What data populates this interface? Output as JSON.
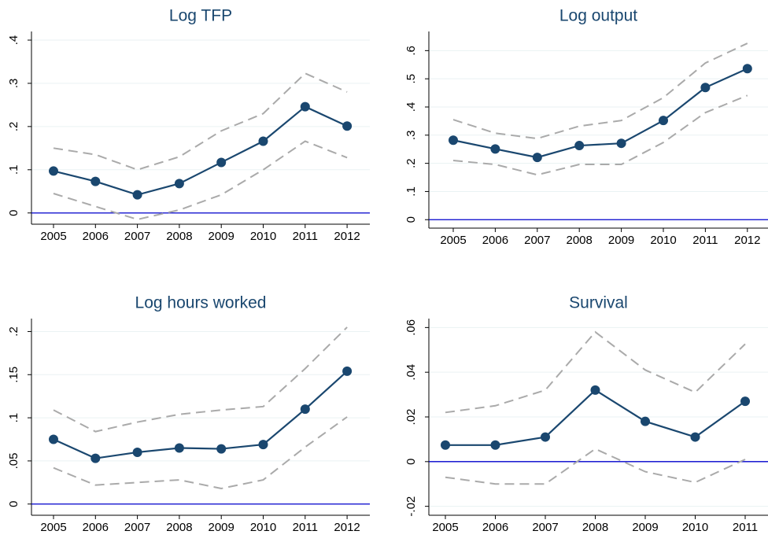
{
  "chart_data": [
    {
      "type": "line",
      "title": "Log TFP",
      "categories": [
        "2005",
        "2006",
        "2007",
        "2008",
        "2009",
        "2010",
        "2011",
        "2012"
      ],
      "series": [
        {
          "color": "#1a476f",
          "style": "solid",
          "markers": true,
          "values": [
            0.097,
            0.073,
            0.042,
            0.068,
            0.117,
            0.166,
            0.246,
            0.201
          ]
        },
        {
          "color": "#aaaaaa",
          "style": "dashed",
          "markers": false,
          "values": [
            0.15,
            0.135,
            0.1,
            0.13,
            0.19,
            0.23,
            0.323,
            0.28
          ]
        },
        {
          "color": "#aaaaaa",
          "style": "dashed",
          "markers": false,
          "values": [
            0.045,
            0.015,
            -0.015,
            0.007,
            0.042,
            0.1,
            0.166,
            0.128
          ]
        }
      ],
      "ylim": [
        -0.026,
        0.42
      ],
      "yticks": [
        0,
        {
          "value": 0.1,
          "label": ".1"
        },
        {
          "value": 0.2,
          "label": ".2"
        },
        {
          "value": 0.3,
          "label": ".3"
        },
        {
          "value": 0.4,
          "label": ".4"
        }
      ],
      "yline": 0,
      "yline_color": "#0000cc",
      "grid": true
    },
    {
      "type": "line",
      "title": "Log output",
      "categories": [
        "2005",
        "2006",
        "2007",
        "2008",
        "2009",
        "2010",
        "2011",
        "2012"
      ],
      "series": [
        {
          "color": "#1a476f",
          "style": "solid",
          "markers": true,
          "values": [
            0.282,
            0.251,
            0.221,
            0.263,
            0.271,
            0.352,
            0.469,
            0.536
          ]
        },
        {
          "color": "#aaaaaa",
          "style": "dashed",
          "markers": false,
          "values": [
            0.355,
            0.307,
            0.288,
            0.332,
            0.352,
            0.433,
            0.556,
            0.626
          ]
        },
        {
          "color": "#aaaaaa",
          "style": "dashed",
          "markers": false,
          "values": [
            0.21,
            0.196,
            0.159,
            0.196,
            0.196,
            0.274,
            0.38,
            0.441
          ]
        }
      ],
      "ylim": [
        -0.03,
        0.668
      ],
      "yticks": [
        0,
        {
          "value": 0.1,
          "label": ".1"
        },
        {
          "value": 0.2,
          "label": ".2"
        },
        {
          "value": 0.3,
          "label": ".3"
        },
        {
          "value": 0.4,
          "label": ".4"
        },
        {
          "value": 0.5,
          "label": ".5"
        },
        {
          "value": 0.6,
          "label": ".6"
        }
      ],
      "yline": 0,
      "yline_color": "#0000cc",
      "grid": true
    },
    {
      "type": "line",
      "title": "Log hours worked",
      "categories": [
        "2005",
        "2006",
        "2007",
        "2008",
        "2009",
        "2010",
        "2011",
        "2012"
      ],
      "series": [
        {
          "color": "#1a476f",
          "style": "solid",
          "markers": true,
          "values": [
            0.075,
            0.053,
            0.06,
            0.065,
            0.064,
            0.069,
            0.11,
            0.154
          ]
        },
        {
          "color": "#aaaaaa",
          "style": "dashed",
          "markers": false,
          "values": [
            0.109,
            0.084,
            0.095,
            0.104,
            0.109,
            0.113,
            0.157,
            0.205
          ]
        },
        {
          "color": "#aaaaaa",
          "style": "dashed",
          "markers": false,
          "values": [
            0.042,
            0.022,
            0.025,
            0.028,
            0.018,
            0.028,
            0.066,
            0.101
          ]
        }
      ],
      "ylim": [
        -0.013,
        0.215
      ],
      "yticks": [
        0,
        {
          "value": 0.05,
          "label": ".05"
        },
        {
          "value": 0.1,
          "label": ".1"
        },
        {
          "value": 0.15,
          "label": ".15"
        },
        {
          "value": 0.2,
          "label": ".2"
        }
      ],
      "yline": 0,
      "yline_color": "#0000cc",
      "grid": true
    },
    {
      "type": "line",
      "title": "Survival",
      "categories": [
        "2005",
        "2006",
        "2007",
        "2008",
        "2009",
        "2010",
        "2011"
      ],
      "series": [
        {
          "color": "#1a476f",
          "style": "solid",
          "markers": true,
          "values": [
            0.0074,
            0.0074,
            0.011,
            0.032,
            0.018,
            0.011,
            0.027
          ]
        },
        {
          "color": "#aaaaaa",
          "style": "dashed",
          "markers": false,
          "values": [
            0.022,
            0.025,
            0.032,
            0.058,
            0.041,
            0.031,
            0.0526
          ]
        },
        {
          "color": "#aaaaaa",
          "style": "dashed",
          "markers": false,
          "values": [
            -0.007,
            -0.01,
            -0.01,
            0.0057,
            -0.0045,
            -0.0093,
            0.001
          ]
        }
      ],
      "ylim": [
        -0.024,
        0.064
      ],
      "yticks": [
        {
          "value": -0.02,
          "label": "-.02"
        },
        0,
        {
          "value": 0.02,
          "label": ".02"
        },
        {
          "value": 0.04,
          "label": ".04"
        },
        {
          "value": 0.06,
          "label": ".06"
        }
      ],
      "yline": 0,
      "yline_color": "#0000cc",
      "grid": true
    }
  ]
}
